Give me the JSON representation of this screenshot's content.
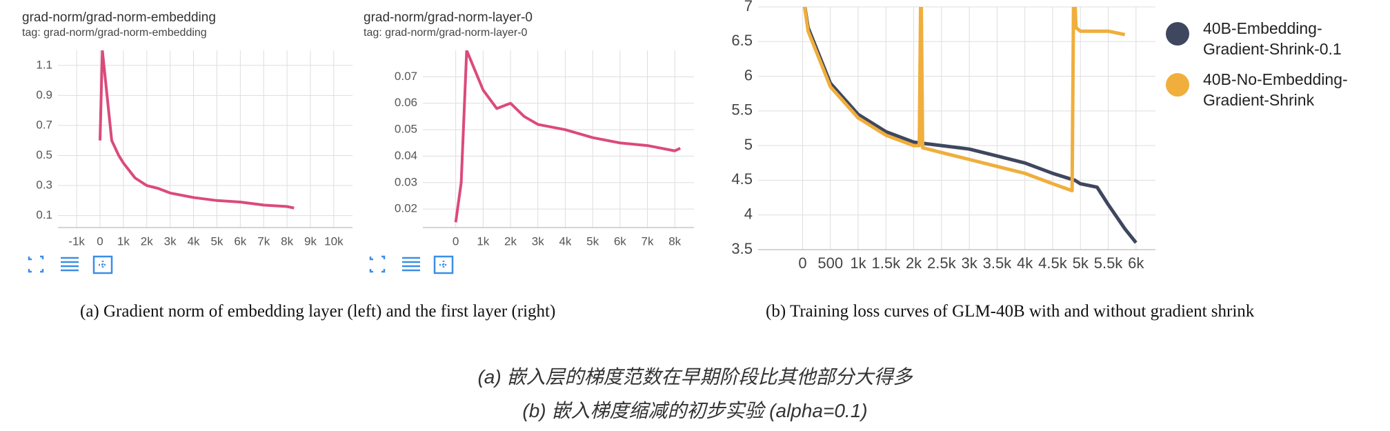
{
  "chart_data": [
    {
      "type": "line",
      "title": "grad-norm/grad-norm-embedding",
      "subtitle": "tag: grad-norm/grad-norm-embedding",
      "xlim": [
        -1800,
        10800
      ],
      "ylim": [
        0.02,
        1.2
      ],
      "xticks": [
        {
          "value": -1000,
          "label": "-1k"
        },
        0,
        {
          "value": 1000,
          "label": "1k"
        },
        {
          "value": 2000,
          "label": "2k"
        },
        {
          "value": 3000,
          "label": "3k"
        },
        {
          "value": 4000,
          "label": "4k"
        },
        {
          "value": 5000,
          "label": "5k"
        },
        {
          "value": 6000,
          "label": "6k"
        },
        {
          "value": 7000,
          "label": "7k"
        },
        {
          "value": 8000,
          "label": "8k"
        },
        {
          "value": 9000,
          "label": "9k"
        },
        {
          "value": 10000,
          "label": "10k"
        }
      ],
      "yticks": [
        0.1,
        0.3,
        0.5,
        0.7,
        0.9,
        1.1
      ],
      "grid": true,
      "series": [
        {
          "color": "#db4a7c",
          "x": [
            0,
            100,
            300,
            500,
            800,
            1000,
            1500,
            2000,
            2500,
            3000,
            4000,
            5000,
            6000,
            7000,
            8000,
            8300
          ],
          "values": [
            0.6,
            1.2,
            0.9,
            0.6,
            0.5,
            0.45,
            0.35,
            0.3,
            0.28,
            0.25,
            0.22,
            0.2,
            0.19,
            0.17,
            0.16,
            0.15
          ]
        }
      ]
    },
    {
      "type": "line",
      "title": "grad-norm/grad-norm-layer-0",
      "subtitle": "tag: grad-norm/grad-norm-layer-0",
      "xlim": [
        -1200,
        8700
      ],
      "ylim": [
        0.013,
        0.08
      ],
      "xticks": [
        0,
        {
          "value": 1000,
          "label": "1k"
        },
        {
          "value": 2000,
          "label": "2k"
        },
        {
          "value": 3000,
          "label": "3k"
        },
        {
          "value": 4000,
          "label": "4k"
        },
        {
          "value": 5000,
          "label": "5k"
        },
        {
          "value": 6000,
          "label": "6k"
        },
        {
          "value": 7000,
          "label": "7k"
        },
        {
          "value": 8000,
          "label": "8k"
        }
      ],
      "yticks": [
        0.02,
        0.03,
        0.04,
        0.05,
        0.06,
        0.07
      ],
      "grid": true,
      "series": [
        {
          "color": "#db4a7c",
          "x": [
            0,
            200,
            400,
            600,
            800,
            1000,
            1500,
            2000,
            2500,
            3000,
            4000,
            5000,
            6000,
            7000,
            8000,
            8200
          ],
          "values": [
            0.015,
            0.03,
            0.08,
            0.075,
            0.07,
            0.065,
            0.058,
            0.06,
            0.055,
            0.052,
            0.05,
            0.047,
            0.045,
            0.044,
            0.042,
            0.043
          ]
        }
      ]
    },
    {
      "type": "line",
      "xlim": [
        -800,
        6350
      ],
      "ylim": [
        3.5,
        7
      ],
      "xticks": [
        0,
        500,
        {
          "value": 1000,
          "label": "1k"
        },
        {
          "value": 1500,
          "label": "1.5k"
        },
        {
          "value": 2000,
          "label": "2k"
        },
        {
          "value": 2500,
          "label": "2.5k"
        },
        {
          "value": 3000,
          "label": "3k"
        },
        {
          "value": 3500,
          "label": "3.5k"
        },
        {
          "value": 4000,
          "label": "4k"
        },
        {
          "value": 4500,
          "label": "4.5k"
        },
        {
          "value": 5000,
          "label": "5k"
        },
        {
          "value": 5500,
          "label": "5.5k"
        },
        {
          "value": 6000,
          "label": "6k"
        }
      ],
      "yticks": [
        3.5,
        4,
        4.5,
        5,
        5.5,
        6,
        6.5,
        7
      ],
      "grid": true,
      "series": [
        {
          "name": "40B-Embedding-Gradient-Shrink-0.1",
          "color": "#3e475e",
          "x": [
            0,
            100,
            200,
            500,
            1000,
            1500,
            2000,
            2500,
            3000,
            3500,
            4000,
            4500,
            4900,
            5000,
            5300,
            5500,
            5800,
            6000
          ],
          "values": [
            7.2,
            6.7,
            6.5,
            5.9,
            5.45,
            5.2,
            5.05,
            5.0,
            4.95,
            4.85,
            4.75,
            4.6,
            4.5,
            4.45,
            4.4,
            4.15,
            3.8,
            3.6
          ]
        },
        {
          "name": "40B-No-Embedding-Gradient-Shrink",
          "color": "#f0ae3c",
          "x": [
            0,
            100,
            200,
            500,
            1000,
            1500,
            2000,
            2100,
            2130,
            2160,
            2500,
            3000,
            3500,
            4000,
            4500,
            4850,
            4880,
            4920,
            5000,
            5500,
            5800
          ],
          "values": [
            7.2,
            6.65,
            6.45,
            5.85,
            5.4,
            5.15,
            5.0,
            5.0,
            7.5,
            4.97,
            4.9,
            4.8,
            4.7,
            4.6,
            4.45,
            4.35,
            7.5,
            6.7,
            6.65,
            6.65,
            6.6
          ]
        }
      ]
    }
  ],
  "captions": {
    "a": "(a) Gradient norm of embedding layer (left) and the first layer (right)",
    "b": "(b) Training loss curves of GLM-40B with and without gradient shrink",
    "note_a": "(a) 嵌入层的梯度范数在早期阶段比其他部分大得多",
    "note_b": "(b) 嵌入梯度缩减的初步实验 (alpha=0.1)"
  }
}
